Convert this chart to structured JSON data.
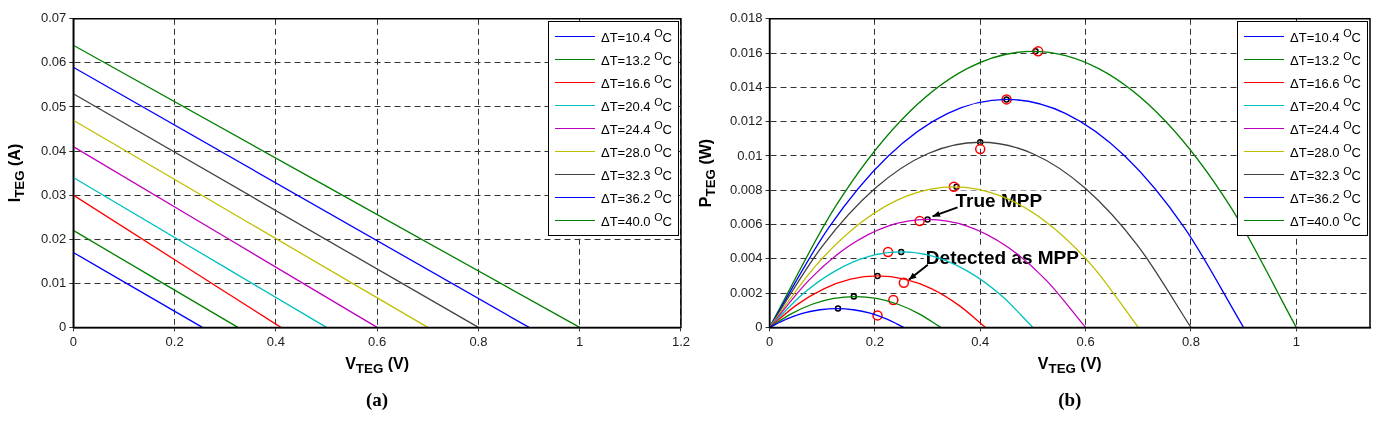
{
  "chart_data": [
    {
      "type": "line",
      "xlabel": "V$_{TEG}$ (V)",
      "ylabel": "I$_{TEG}$ (A)",
      "xlim": [
        0,
        1.2
      ],
      "xticks": [
        0,
        0.2,
        0.4,
        0.6,
        0.8,
        1,
        1.2
      ],
      "ylim": [
        0,
        0.07
      ],
      "yticks": [
        0,
        0.01,
        0.02,
        0.03,
        0.04,
        0.05,
        0.06,
        0.07
      ],
      "grid": true,
      "legend": "top right",
      "marker": "none",
      "annotations": [
        "(a)"
      ],
      "series": [
        {
          "name": "ΔT=10.4 $^{O}$C",
          "color": "#0000ff",
          "x": [
            0,
            0.255
          ],
          "values": [
            0.017,
            0
          ]
        },
        {
          "name": "ΔT=13.2 $^{O}$C",
          "color": "#008000",
          "x": [
            0,
            0.325
          ],
          "values": [
            0.022,
            0
          ]
        },
        {
          "name": "ΔT=16.6 $^{O}$C",
          "color": "#ff0000",
          "x": [
            0,
            0.41
          ],
          "values": [
            0.03,
            0
          ]
        },
        {
          "name": "ΔT=20.4 $^{O}$C",
          "color": "#00bfbf",
          "x": [
            0,
            0.5
          ],
          "values": [
            0.034,
            0
          ]
        },
        {
          "name": "ΔT=24.4 $^{O}$C",
          "color": "#bf00bf",
          "x": [
            0,
            0.6
          ],
          "values": [
            0.041,
            0
          ]
        },
        {
          "name": "ΔT=28.0 $^{O}$C",
          "color": "#bfbf00",
          "x": [
            0,
            0.7
          ],
          "values": [
            0.047,
            0
          ]
        },
        {
          "name": "ΔT=32.3 $^{O}$C",
          "color": "#404040",
          "x": [
            0,
            0.8
          ],
          "values": [
            0.053,
            0
          ]
        },
        {
          "name": "ΔT=36.2 $^{O}$C",
          "color": "#0000ff",
          "x": [
            0,
            0.9
          ],
          "values": [
            0.059,
            0
          ]
        },
        {
          "name": "ΔT=40.0 $^{O}$C",
          "color": "#008000",
          "x": [
            0,
            1
          ],
          "values": [
            0.064,
            0
          ]
        }
      ]
    },
    {
      "type": "line",
      "xlabel": "V$_{TEG}$ (V)",
      "ylabel": "P$_{TEG}$ (W)",
      "xlim": [
        0,
        1.14
      ],
      "xticks": [
        0,
        0.2,
        0.4,
        0.6,
        0.8,
        1
      ],
      "ylim": [
        0,
        0.018
      ],
      "yticks": [
        0,
        0.002,
        0.004,
        0.006,
        0.008,
        0.01,
        0.012,
        0.014,
        0.016,
        0.018
      ],
      "grid": true,
      "legend": "top right",
      "marker": "none",
      "annotations": [
        {
          "text": "True MPP",
          "x": 0.3,
          "y": 0.0063
        },
        {
          "text": "Detected as MPP",
          "x": 0.255,
          "y": 0.0026
        },
        "(b)"
      ],
      "series": [
        {
          "name": "ΔT=10.4 $^{O}$C",
          "color": "#0000ff",
          "x": [
            0,
            0.032,
            0.064,
            0.096,
            0.128,
            0.159,
            0.191,
            0.223,
            0.255
          ],
          "values": [
            0,
            0.00048,
            0.00083,
            0.00103,
            0.0011,
            0.00103,
            0.00083,
            0.00048,
            0
          ]
        },
        {
          "name": "ΔT=13.2 $^{O}$C",
          "color": "#008000",
          "x": [
            0,
            0.041,
            0.081,
            0.122,
            0.163,
            0.203,
            0.244,
            0.284,
            0.325
          ],
          "values": [
            0,
            0.00079,
            0.00135,
            0.00169,
            0.0018,
            0.00169,
            0.00135,
            0.00079,
            0
          ]
        },
        {
          "name": "ΔT=16.6 $^{O}$C",
          "color": "#ff0000",
          "x": [
            0,
            0.051,
            0.103,
            0.154,
            0.205,
            0.256,
            0.308,
            0.359,
            0.41
          ],
          "values": [
            0,
            0.0013,
            0.00225,
            0.00281,
            0.003,
            0.00281,
            0.00225,
            0.0013,
            0
          ]
        },
        {
          "name": "ΔT=20.4 $^{O}$C",
          "color": "#00bfbf",
          "x": [
            0,
            0.0625,
            0.125,
            0.1875,
            0.25,
            0.3125,
            0.375,
            0.4375,
            0.5
          ],
          "values": [
            0,
            0.00193,
            0.0033,
            0.00413,
            0.0044,
            0.00413,
            0.0033,
            0.00193,
            0
          ]
        },
        {
          "name": "ΔT=24.4 $^{O}$C",
          "color": "#bf00bf",
          "x": [
            0,
            0.075,
            0.15,
            0.225,
            0.3,
            0.375,
            0.45,
            0.525,
            0.6
          ],
          "values": [
            0,
            0.00276,
            0.00473,
            0.00591,
            0.0063,
            0.00591,
            0.00473,
            0.00276,
            0
          ]
        },
        {
          "name": "ΔT=28.0 $^{O}$C",
          "color": "#bfbf00",
          "x": [
            0,
            0.0875,
            0.175,
            0.2625,
            0.35,
            0.4375,
            0.525,
            0.6125,
            0.7
          ],
          "values": [
            0,
            0.00359,
            0.00615,
            0.00769,
            0.0082,
            0.00769,
            0.00615,
            0.00359,
            0
          ]
        },
        {
          "name": "ΔT=32.3 $^{O}$C",
          "color": "#404040",
          "x": [
            0,
            0.1,
            0.2,
            0.3,
            0.4,
            0.5,
            0.6,
            0.7,
            0.8
          ],
          "values": [
            0,
            0.00473,
            0.0081,
            0.01013,
            0.0108,
            0.01013,
            0.0081,
            0.00473,
            0
          ]
        },
        {
          "name": "ΔT=36.2 $^{O}$C",
          "color": "#0000ff",
          "x": [
            0,
            0.1125,
            0.225,
            0.3375,
            0.45,
            0.5625,
            0.675,
            0.7875,
            0.9
          ],
          "values": [
            0,
            0.00582,
            0.00998,
            0.01247,
            0.0133,
            0.01247,
            0.00998,
            0.00582,
            0
          ]
        },
        {
          "name": "ΔT=40.0 $^{O}$C",
          "color": "#008000",
          "x": [
            0,
            0.125,
            0.25,
            0.375,
            0.5,
            0.625,
            0.75,
            0.875,
            1
          ],
          "values": [
            0,
            0.00704,
            0.01208,
            0.01509,
            0.0161,
            0.01509,
            0.01208,
            0.00704,
            0
          ]
        },
        {
          "type": "scatter",
          "marker": "circle",
          "color": "#ff0000",
          "x": [
            0.205,
            0.235,
            0.255,
            0.225,
            0.285,
            0.35,
            0.4,
            0.45,
            0.51
          ],
          "values": [
            0.0007,
            0.0016,
            0.0026,
            0.0044,
            0.0062,
            0.0082,
            0.0104,
            0.0133,
            0.0161
          ]
        },
        {
          "type": "scatter",
          "marker": "circle",
          "color": "#000000",
          "x": [
            0.13,
            0.16,
            0.205,
            0.25,
            0.3,
            0.355,
            0.4,
            0.45,
            0.505
          ],
          "values": [
            0.0011,
            0.0018,
            0.003,
            0.0044,
            0.0063,
            0.0082,
            0.0108,
            0.0133,
            0.0161
          ]
        }
      ]
    }
  ]
}
